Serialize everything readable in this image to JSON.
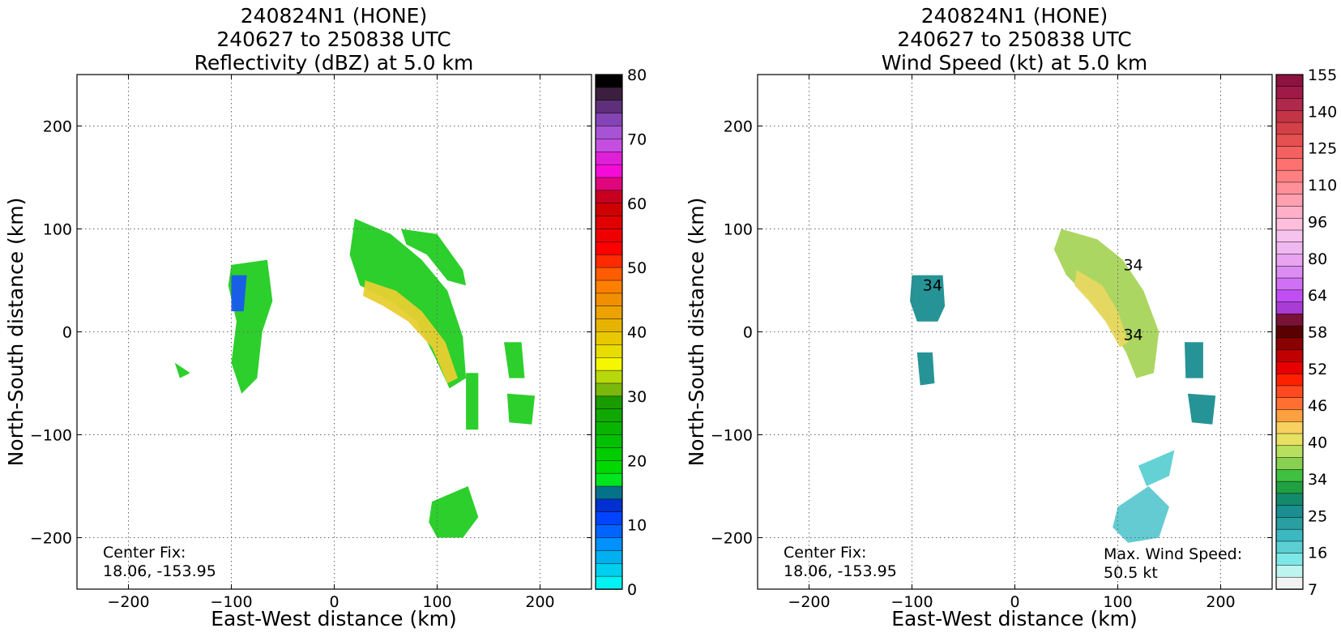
{
  "chart_data": [
    {
      "type": "heatmap",
      "title_lines": [
        "240824N1 (HONE)",
        "240627 to 250838 UTC",
        "Reflectivity (dBZ) at 5.0 km"
      ],
      "xlabel": "East-West distance (km)",
      "ylabel": "North-South distance (km)",
      "xlim": [
        -250,
        250
      ],
      "ylim": [
        -250,
        250
      ],
      "xticks": [
        -200,
        -100,
        0,
        100,
        200
      ],
      "yticks": [
        200,
        100,
        0,
        -100,
        -200
      ],
      "grid": true,
      "annotation_left": [
        "Center Fix:",
        "18.06, -153.95"
      ],
      "colorbar": {
        "min": 0,
        "max": 80,
        "tick_labels": [
          "80",
          "70",
          "60",
          "50",
          "40",
          "30",
          "20",
          "10",
          "0"
        ],
        "colors_top_to_bottom": [
          "#000000",
          "#3b1f3d",
          "#5e2f7a",
          "#8444b5",
          "#a653d4",
          "#c44ee0",
          "#e020d8",
          "#f40cd6",
          "#e0077e",
          "#c80020",
          "#cf0000",
          "#e00000",
          "#ef0000",
          "#ff0000",
          "#ff2a00",
          "#ff5d00",
          "#ff8000",
          "#f09000",
          "#eca200",
          "#e6b400",
          "#e8c800",
          "#e8dd00",
          "#f6f600",
          "#b7d80a",
          "#7ab80b",
          "#189c00",
          "#0fa800",
          "#08b400",
          "#00c000",
          "#00cc00",
          "#00d800",
          "#00e61e",
          "#04738a",
          "#0030d0",
          "#0044ff",
          "#0064ff",
          "#0090ff",
          "#00b0f0",
          "#00cfee",
          "#00f2f2"
        ]
      },
      "echo_regions": [
        {
          "type": "polygon",
          "color": "#22cc22",
          "points": [
            [
              20,
              110
            ],
            [
              55,
              95
            ],
            [
              85,
              70
            ],
            [
              110,
              40
            ],
            [
              125,
              -5
            ],
            [
              128,
              -45
            ],
            [
              112,
              -55
            ],
            [
              98,
              -25
            ],
            [
              80,
              10
            ],
            [
              55,
              30
            ],
            [
              25,
              45
            ],
            [
              15,
              75
            ]
          ]
        },
        {
          "type": "polygon",
          "color": "#e8cf30",
          "points": [
            [
              30,
              50
            ],
            [
              60,
              40
            ],
            [
              85,
              20
            ],
            [
              108,
              -10
            ],
            [
              120,
              -45
            ],
            [
              110,
              -50
            ],
            [
              95,
              -15
            ],
            [
              72,
              10
            ],
            [
              48,
              25
            ],
            [
              28,
              35
            ]
          ]
        },
        {
          "type": "polygon",
          "color": "#22cc22",
          "points": [
            [
              65,
              100
            ],
            [
              100,
              95
            ],
            [
              125,
              60
            ],
            [
              128,
              45
            ],
            [
              110,
              50
            ],
            [
              90,
              75
            ],
            [
              70,
              85
            ]
          ]
        },
        {
          "type": "polygon",
          "color": "#22cc22",
          "points": [
            [
              -100,
              65
            ],
            [
              -65,
              70
            ],
            [
              -60,
              30
            ],
            [
              -70,
              0
            ],
            [
              -75,
              -45
            ],
            [
              -90,
              -60
            ],
            [
              -100,
              -30
            ],
            [
              -95,
              10
            ],
            [
              -103,
              45
            ]
          ]
        },
        {
          "type": "polygon",
          "color": "#22cc22",
          "points": [
            [
              -155,
              -30
            ],
            [
              -140,
              -40
            ],
            [
              -150,
              -45
            ]
          ]
        },
        {
          "type": "polygon",
          "color": "#22cc22",
          "points": [
            [
              95,
              -165
            ],
            [
              130,
              -150
            ],
            [
              140,
              -180
            ],
            [
              125,
              -200
            ],
            [
              100,
              -200
            ],
            [
              92,
              -185
            ]
          ]
        },
        {
          "type": "polygon",
          "color": "#22cc22",
          "points": [
            [
              165,
              -10
            ],
            [
              182,
              -10
            ],
            [
              185,
              -45
            ],
            [
              170,
              -45
            ]
          ]
        },
        {
          "type": "polygon",
          "color": "#22cc22",
          "points": [
            [
              168,
              -60
            ],
            [
              195,
              -62
            ],
            [
              192,
              -90
            ],
            [
              170,
              -88
            ]
          ]
        },
        {
          "type": "polygon",
          "color": "#22cc22",
          "points": [
            [
              128,
              -40
            ],
            [
              140,
              -40
            ],
            [
              140,
              -95
            ],
            [
              128,
              -95
            ]
          ]
        },
        {
          "type": "polygon",
          "color": "#1858f0",
          "points": [
            [
              -100,
              55
            ],
            [
              -85,
              55
            ],
            [
              -88,
              20
            ],
            [
              -100,
              20
            ]
          ]
        }
      ]
    },
    {
      "type": "heatmap",
      "title_lines": [
        "240824N1 (HONE)",
        "240627 to 250838 UTC",
        "Wind Speed (kt) at 5.0 km"
      ],
      "xlabel": "East-West distance (km)",
      "ylabel": "North-South distance (km)",
      "xlim": [
        -250,
        250
      ],
      "ylim": [
        -250,
        250
      ],
      "xticks": [
        -200,
        -100,
        0,
        100,
        200
      ],
      "yticks": [
        200,
        100,
        0,
        -100,
        -200
      ],
      "grid": true,
      "annotation_left": [
        "Center Fix:",
        "18.06, -153.95"
      ],
      "annotation_right": [
        "Max. Wind Speed:",
        "50.5 kt"
      ],
      "contour_labels": [
        "34",
        "34",
        "34"
      ],
      "colorbar": {
        "min": 0,
        "max": 160,
        "tick_labels": [
          "155",
          "140",
          "125",
          "110",
          "96",
          "80",
          "64",
          "58",
          "52",
          "46",
          "40",
          "34",
          "25",
          "16",
          "7"
        ],
        "colors_top_to_bottom": [
          "#8c1240",
          "#a01a48",
          "#b0284c",
          "#c23446",
          "#d44048",
          "#e65050",
          "#f56060",
          "#ff7070",
          "#ff8080",
          "#ff909a",
          "#ffa0b0",
          "#ffb0c8",
          "#ffbedc",
          "#f6c2ee",
          "#f0b8f0",
          "#e8a4f0",
          "#dc8cf2",
          "#d070f4",
          "#c04ef4",
          "#a83cd4",
          "#7a1238",
          "#5a0000",
          "#8a0000",
          "#c00000",
          "#e80000",
          "#ff2000",
          "#ff4a20",
          "#ff7030",
          "#ffa040",
          "#f8d060",
          "#e8e060",
          "#b8e060",
          "#88d050",
          "#40c040",
          "#20a040",
          "#138a6c",
          "#1a8e90",
          "#2a9ea0",
          "#3cb8c0",
          "#5ccfd2",
          "#7ee8e8",
          "#bef4f0",
          "#f2f2f2"
        ]
      },
      "speed_regions": [
        {
          "type": "polygon",
          "color": "#a8d45a",
          "points": [
            [
              45,
              100
            ],
            [
              80,
              90
            ],
            [
              105,
              70
            ],
            [
              125,
              40
            ],
            [
              140,
              0
            ],
            [
              135,
              -40
            ],
            [
              118,
              -45
            ],
            [
              108,
              -20
            ],
            [
              90,
              10
            ],
            [
              70,
              35
            ],
            [
              50,
              55
            ],
            [
              38,
              80
            ]
          ]
        },
        {
          "type": "polygon",
          "color": "#e8d860",
          "points": [
            [
              60,
              60
            ],
            [
              85,
              45
            ],
            [
              100,
              20
            ],
            [
              110,
              -10
            ],
            [
              102,
              -15
            ],
            [
              88,
              10
            ],
            [
              72,
              30
            ],
            [
              58,
              45
            ]
          ]
        },
        {
          "type": "polygon",
          "color": "#1a8e90",
          "points": [
            [
              -100,
              55
            ],
            [
              -70,
              55
            ],
            [
              -68,
              25
            ],
            [
              -75,
              10
            ],
            [
              -95,
              10
            ],
            [
              -102,
              30
            ]
          ]
        },
        {
          "type": "polygon",
          "color": "#1a8e90",
          "points": [
            [
              -95,
              -20
            ],
            [
              -80,
              -20
            ],
            [
              -78,
              -50
            ],
            [
              -92,
              -52
            ]
          ]
        },
        {
          "type": "polygon",
          "color": "#1a8e90",
          "points": [
            [
              165,
              -10
            ],
            [
              183,
              -10
            ],
            [
              183,
              -45
            ],
            [
              166,
              -45
            ]
          ]
        },
        {
          "type": "polygon",
          "color": "#1a8e90",
          "points": [
            [
              168,
              -60
            ],
            [
              195,
              -62
            ],
            [
              192,
              -90
            ],
            [
              172,
              -88
            ]
          ]
        },
        {
          "type": "polygon",
          "color": "#5cc8d0",
          "points": [
            [
              100,
              -170
            ],
            [
              130,
              -150
            ],
            [
              150,
              -170
            ],
            [
              140,
              -200
            ],
            [
              110,
              -205
            ],
            [
              95,
              -190
            ]
          ]
        },
        {
          "type": "polygon",
          "color": "#5ccfd2",
          "points": [
            [
              120,
              -130
            ],
            [
              155,
              -115
            ],
            [
              150,
              -140
            ],
            [
              128,
              -150
            ]
          ]
        }
      ]
    }
  ]
}
